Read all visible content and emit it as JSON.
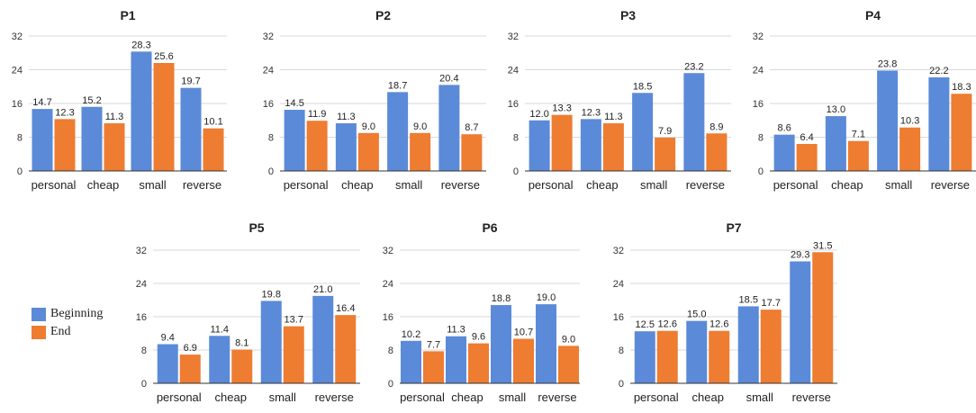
{
  "colors": {
    "beginning": "#5b8ad8",
    "end": "#ee7c31",
    "grid": "#d9d9d9",
    "axis": "#333333"
  },
  "legend": {
    "beginning": "Beginning",
    "end": "End"
  },
  "chart_data": [
    {
      "type": "bar",
      "title": "P1",
      "categories": [
        "personal",
        "cheap",
        "small",
        "reverse"
      ],
      "series": [
        {
          "name": "Beginning",
          "values": [
            14.7,
            15.2,
            28.3,
            19.7
          ],
          "labels": [
            "14.7",
            "15.2",
            "28.3",
            "19.7"
          ]
        },
        {
          "name": "End",
          "values": [
            12.3,
            11.3,
            25.6,
            10.1
          ],
          "labels": [
            "12.3",
            "11.3",
            "25.6",
            "10.1"
          ]
        }
      ],
      "yticks": [
        "0",
        "8",
        "16",
        "24",
        "32"
      ],
      "ylim": [
        0,
        32
      ],
      "grid": true
    },
    {
      "type": "bar",
      "title": "P2",
      "categories": [
        "personal",
        "cheap",
        "small",
        "reverse"
      ],
      "series": [
        {
          "name": "Beginning",
          "values": [
            14.5,
            11.3,
            18.7,
            20.4
          ],
          "labels": [
            "14.5",
            "11.3",
            "18.7",
            "20.4"
          ]
        },
        {
          "name": "End",
          "values": [
            11.9,
            9.0,
            9.0,
            8.7
          ],
          "labels": [
            "11.9",
            "9.0",
            "9.0",
            "8.7"
          ]
        }
      ],
      "yticks": [
        "0",
        "8",
        "16",
        "24",
        "32"
      ],
      "ylim": [
        0,
        32
      ],
      "grid": true
    },
    {
      "type": "bar",
      "title": "P3",
      "categories": [
        "personal",
        "cheap",
        "small",
        "reverse"
      ],
      "series": [
        {
          "name": "Beginning",
          "values": [
            12.0,
            12.3,
            18.5,
            23.2
          ],
          "labels": [
            "12.0",
            "12.3",
            "18.5",
            "23.2"
          ]
        },
        {
          "name": "End",
          "values": [
            13.3,
            11.3,
            7.9,
            8.9
          ],
          "labels": [
            "13.3",
            "11.3",
            "7.9",
            "8.9"
          ]
        }
      ],
      "yticks": [
        "0",
        "8",
        "16",
        "24",
        "32"
      ],
      "ylim": [
        0,
        32
      ],
      "grid": true
    },
    {
      "type": "bar",
      "title": "P4",
      "categories": [
        "personal",
        "cheap",
        "small",
        "reverse"
      ],
      "series": [
        {
          "name": "Beginning",
          "values": [
            8.6,
            13.0,
            23.8,
            22.2
          ],
          "labels": [
            "8.6",
            "13.0",
            "23.8",
            "22.2"
          ]
        },
        {
          "name": "End",
          "values": [
            6.4,
            7.1,
            10.3,
            18.3
          ],
          "labels": [
            "6.4",
            "7.1",
            "10.3",
            "18.3"
          ]
        }
      ],
      "yticks": [
        "0",
        "8",
        "16",
        "24",
        "32"
      ],
      "ylim": [
        0,
        32
      ],
      "grid": true
    },
    {
      "type": "bar",
      "title": "P5",
      "categories": [
        "personal",
        "cheap",
        "small",
        "reverse"
      ],
      "series": [
        {
          "name": "Beginning",
          "values": [
            9.4,
            11.4,
            19.8,
            21.0
          ],
          "labels": [
            "9.4",
            "11.4",
            "19.8",
            "21.0"
          ]
        },
        {
          "name": "End",
          "values": [
            6.9,
            8.1,
            13.7,
            16.4
          ],
          "labels": [
            "6.9",
            "8.1",
            "13.7",
            "16.4"
          ]
        }
      ],
      "yticks": [
        "0",
        "8",
        "16",
        "24",
        "32"
      ],
      "ylim": [
        0,
        32
      ],
      "grid": true
    },
    {
      "type": "bar",
      "title": "P6",
      "categories": [
        "personal",
        "cheap",
        "small",
        "reverse"
      ],
      "series": [
        {
          "name": "Beginning",
          "values": [
            10.2,
            11.3,
            18.8,
            19.0
          ],
          "labels": [
            "10.2",
            "11.3",
            "18.8",
            "19.0"
          ]
        },
        {
          "name": "End",
          "values": [
            7.7,
            9.6,
            10.7,
            9.0
          ],
          "labels": [
            "7.7",
            "9.6",
            "10.7",
            "9.0"
          ]
        }
      ],
      "yticks": [
        "0",
        "8",
        "16",
        "24",
        "32"
      ],
      "ylim": [
        0,
        32
      ],
      "grid": true
    },
    {
      "type": "bar",
      "title": "P7",
      "categories": [
        "personal",
        "cheap",
        "small",
        "reverse"
      ],
      "series": [
        {
          "name": "Beginning",
          "values": [
            12.5,
            15.0,
            18.5,
            29.3
          ],
          "labels": [
            "12.5",
            "15.0",
            "18.5",
            "29.3"
          ]
        },
        {
          "name": "End",
          "values": [
            12.6,
            12.6,
            17.7,
            31.5
          ],
          "labels": [
            "12.6",
            "12.6",
            "17.7",
            "31.5"
          ]
        }
      ],
      "yticks": [
        "0",
        "8",
        "16",
        "24",
        "32"
      ],
      "ylim": [
        0,
        32
      ],
      "grid": true
    }
  ]
}
